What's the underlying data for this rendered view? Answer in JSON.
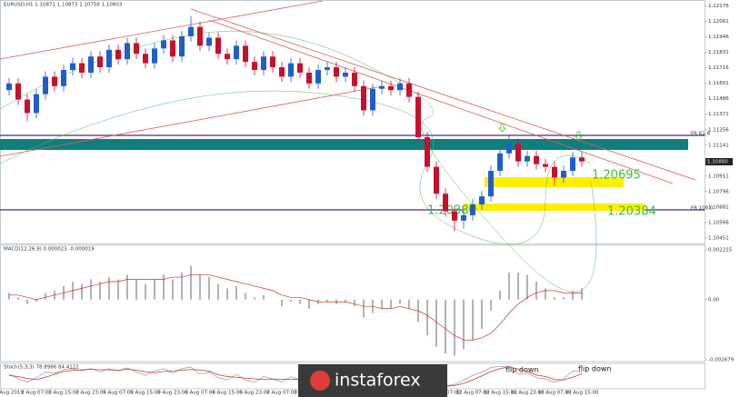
{
  "watermark": "instaforex",
  "chart_data": [
    {
      "type": "candlestick",
      "title": "EURUSD,H1 1.10871 1.10873 1.10758 1.10803",
      "categories": [
        "1 Aug 2019",
        null,
        null,
        "2 Aug 07:00",
        null,
        null,
        "2 Aug 15:00",
        null,
        null,
        "2 Aug 23:00",
        null,
        null,
        "5 Aug 07:00",
        null,
        null,
        "5 Aug 15:00",
        null,
        null,
        "5 Aug 23:00",
        null,
        null,
        "6 Aug 07:00",
        null,
        null,
        "6 Aug 15:00",
        null,
        null,
        "6 Aug 23:00",
        null,
        null,
        "7 Aug 07:00",
        null,
        null,
        "7 Aug 15:00",
        null,
        null,
        "7 Aug 23:00",
        null,
        null,
        "8 Aug 07:00",
        null,
        null,
        "8 Aug 15:00",
        null,
        null,
        "8 Aug 23:00",
        null,
        null,
        "9 Aug 07:00",
        null,
        null,
        "12 Aug 07:00",
        null,
        null,
        "12 Aug 15:00",
        null,
        null,
        "12 Aug 23:00",
        null,
        null,
        "13 Aug 07:00",
        null,
        null,
        "13 Aug 15:00"
      ],
      "open": [
        1.1155,
        1.116,
        1.1148,
        1.1138,
        1.1152,
        1.1165,
        1.1158,
        1.117,
        1.1175,
        1.1168,
        1.118,
        1.1172,
        1.1185,
        1.1178,
        1.119,
        1.1182,
        1.1175,
        1.1186,
        1.1192,
        1.118,
        1.1195,
        1.1202,
        1.1188,
        1.1194,
        1.1182,
        1.1178,
        1.1188,
        1.1176,
        1.117,
        1.118,
        1.1172,
        1.1165,
        1.1175,
        1.1168,
        1.116,
        1.117,
        1.1172,
        1.1165,
        1.1168,
        1.1158,
        1.114,
        1.1156,
        1.1158,
        1.1155,
        1.116,
        1.115,
        1.112,
        1.1098,
        1.1078,
        1.1065,
        1.1058,
        1.1062,
        1.107,
        1.1076,
        1.1095,
        1.1108,
        1.1115,
        1.1102,
        1.1106,
        1.11,
        1.1098,
        1.109,
        1.1095,
        1.1105
      ],
      "high": [
        1.1164,
        1.1164,
        1.1152,
        1.1156,
        1.1169,
        1.1169,
        1.1174,
        1.1179,
        1.1179,
        1.1184,
        1.1184,
        1.1189,
        1.1189,
        1.1194,
        1.1194,
        1.1186,
        1.119,
        1.1196,
        1.1196,
        1.1199,
        1.121,
        1.1206,
        1.1198,
        1.1198,
        1.1186,
        1.1192,
        1.1192,
        1.118,
        1.1184,
        1.1184,
        1.1176,
        1.1179,
        1.1179,
        1.1172,
        1.1174,
        1.1176,
        1.1176,
        1.1172,
        1.1172,
        1.1162,
        1.116,
        1.1162,
        1.1162,
        1.1164,
        1.1164,
        1.1154,
        1.1124,
        1.1102,
        1.1082,
        1.1069,
        1.1066,
        1.1074,
        1.108,
        1.1099,
        1.1112,
        1.1122,
        1.1119,
        1.111,
        1.111,
        1.1104,
        1.1102,
        1.1099,
        1.1109,
        1.1109
      ],
      "low": [
        1.1151,
        1.1144,
        1.1132,
        1.1134,
        1.1148,
        1.1154,
        1.1154,
        1.1166,
        1.1164,
        1.1164,
        1.1168,
        1.1168,
        1.1174,
        1.1174,
        1.1178,
        1.1171,
        1.1171,
        1.1182,
        1.1176,
        1.1176,
        1.1191,
        1.1184,
        1.1184,
        1.1178,
        1.1174,
        1.1174,
        1.1172,
        1.1166,
        1.1166,
        1.1168,
        1.1161,
        1.1161,
        1.1164,
        1.1156,
        1.1156,
        1.1166,
        1.1161,
        1.1161,
        1.1154,
        1.1136,
        1.1136,
        1.1152,
        1.1151,
        1.1151,
        1.1146,
        1.1116,
        1.1094,
        1.1074,
        1.1061,
        1.105,
        1.1052,
        1.1058,
        1.1066,
        1.1072,
        1.1091,
        1.1104,
        1.1098,
        1.1098,
        1.1096,
        1.1094,
        1.1084,
        1.1086,
        1.1091,
        1.1098
      ],
      "close": [
        1.116,
        1.1148,
        1.1138,
        1.1152,
        1.1165,
        1.1158,
        1.117,
        1.1175,
        1.1168,
        1.118,
        1.1172,
        1.1185,
        1.1178,
        1.119,
        1.1182,
        1.1175,
        1.1186,
        1.1192,
        1.118,
        1.1195,
        1.1202,
        1.1188,
        1.1194,
        1.1182,
        1.1178,
        1.1188,
        1.1176,
        1.117,
        1.118,
        1.1172,
        1.1165,
        1.1175,
        1.1168,
        1.116,
        1.117,
        1.1172,
        1.1165,
        1.1168,
        1.1158,
        1.114,
        1.1156,
        1.1158,
        1.1155,
        1.116,
        1.115,
        1.112,
        1.1098,
        1.1078,
        1.1065,
        1.1058,
        1.1062,
        1.107,
        1.1076,
        1.1095,
        1.1108,
        1.1115,
        1.1102,
        1.1106,
        1.11,
        1.1098,
        1.109,
        1.1095,
        1.1105,
        1.1102
      ],
      "up_color": "#1f5fc9",
      "down_color": "#c8102e",
      "ylim": [
        1.1041,
        1.122
      ],
      "yticks": [
        1.12176,
        1.12061,
        1.11946,
        1.11831,
        1.11716,
        1.11601,
        1.11486,
        1.11371,
        1.11256,
        1.11141,
        1.11026,
        1.10911,
        1.10796,
        1.10681,
        1.10566,
        1.10451
      ],
      "annotations": {
        "level_upper": "1.20695",
        "level_lower": "1.20384",
        "level_lower_left": "1.20380",
        "fib_618": "FR 61.8",
        "fib_100": "FR 100.0",
        "current_price": "1.10880"
      }
    },
    {
      "type": "macd",
      "title": "MACD(12,26,9) 0.000023 -0.000019",
      "values": [
        0.0003,
        0.0001,
        -0.0002,
        -0.0001,
        0.0003,
        0.0004,
        0.0006,
        0.0008,
        0.0007,
        0.0009,
        0.0008,
        0.001,
        0.0009,
        0.0011,
        0.0009,
        0.0007,
        0.0009,
        0.0011,
        0.0009,
        0.0012,
        0.0015,
        0.0011,
        0.001,
        0.0007,
        0.0005,
        0.0006,
        0.0003,
        0.0001,
        0.0002,
        0.0,
        -0.0003,
        -0.0001,
        -0.0002,
        -0.0004,
        -0.0002,
        -0.0001,
        -0.0002,
        -0.0001,
        -0.0003,
        -0.0008,
        -0.0006,
        -0.0004,
        -0.0004,
        -0.0002,
        -0.0004,
        -0.001,
        -0.0016,
        -0.0021,
        -0.0024,
        -0.0025,
        -0.0022,
        -0.0018,
        -0.0013,
        -0.0005,
        0.0004,
        0.0012,
        0.0012,
        0.0011,
        0.0008,
        0.0005,
        0.0001,
        0.0001,
        0.0004,
        0.0005
      ],
      "signal": [
        0.0002,
        0.0002,
        0.0001,
        0.0,
        0.0001,
        0.0002,
        0.0003,
        0.0004,
        0.0005,
        0.0006,
        0.0007,
        0.0008,
        0.0008,
        0.0009,
        0.0009,
        0.0009,
        0.0009,
        0.0009,
        0.001,
        0.001,
        0.0011,
        0.0011,
        0.0011,
        0.001,
        0.0009,
        0.0008,
        0.0007,
        0.0006,
        0.0005,
        0.0004,
        0.0002,
        0.0001,
        0.0001,
        0.0,
        -0.0001,
        -0.0001,
        -0.0001,
        -0.0001,
        -0.0002,
        -0.0003,
        -0.0003,
        -0.0004,
        -0.0004,
        -0.0003,
        -0.0004,
        -0.0005,
        -0.0007,
        -0.001,
        -0.0013,
        -0.0016,
        -0.0018,
        -0.0018,
        -0.0017,
        -0.0015,
        -0.0011,
        -0.0006,
        -0.0002,
        0.0001,
        0.0003,
        0.0004,
        0.0004,
        0.0003,
        0.0003,
        0.0003
      ],
      "color": "#a0a0a0",
      "signal_color": "#d03030",
      "ylim": [
        -0.002679,
        0.002215
      ],
      "yticks": [
        0.002215,
        {
          "value": 0,
          "label": "0.00"
        },
        -0.002679
      ]
    },
    {
      "type": "stochastic",
      "title": "Stoch(5,3,3) 78.8986 84.4122",
      "main": [
        60,
        40,
        25,
        45,
        70,
        65,
        80,
        85,
        75,
        85,
        70,
        85,
        75,
        88,
        70,
        55,
        75,
        85,
        65,
        85,
        92,
        60,
        70,
        45,
        35,
        60,
        35,
        25,
        50,
        40,
        25,
        50,
        35,
        20,
        45,
        55,
        35,
        45,
        25,
        10,
        40,
        55,
        50,
        65,
        40,
        12,
        8,
        5,
        10,
        15,
        35,
        55,
        70,
        90,
        95,
        95,
        60,
        65,
        45,
        40,
        25,
        40,
        75,
        70
      ],
      "signal": [
        55,
        50,
        42,
        37,
        47,
        60,
        72,
        77,
        80,
        82,
        80,
        80,
        77,
        83,
        78,
        71,
        67,
        72,
        75,
        78,
        81,
        79,
        74,
        58,
        50,
        47,
        43,
        40,
        37,
        38,
        38,
        38,
        37,
        35,
        33,
        40,
        45,
        45,
        35,
        27,
        25,
        35,
        48,
        57,
        52,
        39,
        20,
        8,
        7,
        10,
        20,
        35,
        53,
        72,
        85,
        93,
        83,
        73,
        57,
        50,
        37,
        35,
        47,
        62
      ],
      "main_color": "#9a9a9a",
      "signal_color": "#d03030",
      "ylim": [
        0,
        100
      ],
      "annotations": [
        "flip down",
        "flip down"
      ]
    }
  ]
}
